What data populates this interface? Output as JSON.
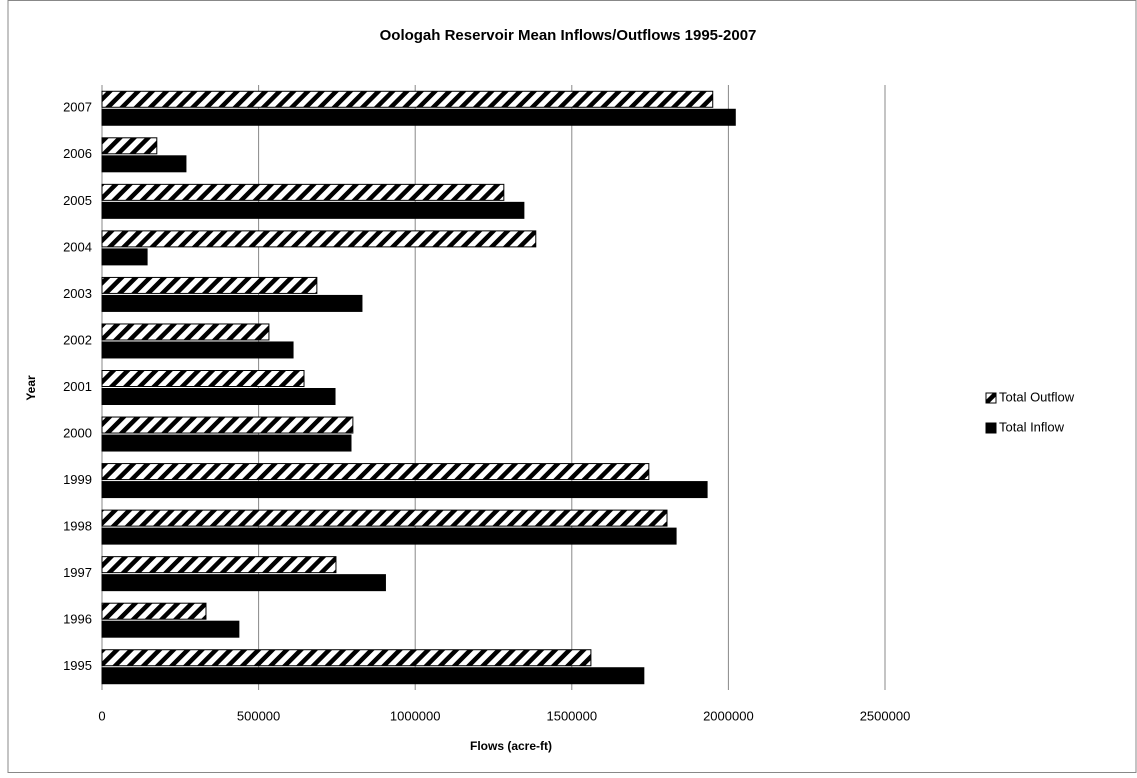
{
  "chart_data": {
    "type": "hbar",
    "title": "Oologah Reservoir Mean Inflows/Outflows 1995-2007",
    "x_label": "Flows (acre-ft)",
    "y_label": "Year",
    "categories": [
      "1995",
      "1996",
      "1997",
      "1998",
      "1999",
      "2000",
      "2001",
      "2002",
      "2003",
      "2004",
      "2005",
      "2006",
      "2007"
    ],
    "series": [
      {
        "name": "Total Outflow",
        "color": "#000000",
        "hatch": true,
        "values": [
          1561000,
          332000,
          747000,
          1804000,
          1746000,
          801000,
          645000,
          533000,
          686000,
          1385000,
          1283000,
          175000,
          1950000
        ]
      },
      {
        "name": "Total Inflow",
        "color": "#000000",
        "hatch": false,
        "values": [
          1730000,
          437000,
          905000,
          1833000,
          1932000,
          795000,
          744000,
          610000,
          830000,
          144000,
          1347000,
          268000,
          2022000
        ]
      }
    ],
    "xlim": [
      0,
      2500000
    ],
    "xticks": [
      0,
      500000,
      1000000,
      1500000,
      2000000,
      2500000
    ],
    "grid": true
  }
}
